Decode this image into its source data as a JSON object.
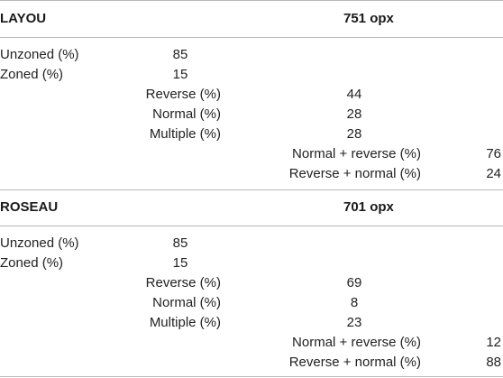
{
  "sections": [
    {
      "title": "LAYOU",
      "sample": "751 opx",
      "rows": {
        "unzoned_label": "Unzoned (%)",
        "unzoned_value": "85",
        "zoned_label": "Zoned (%)",
        "zoned_value": "15",
        "reverse_label": "Reverse (%)",
        "reverse_value": "44",
        "normal_label": "Normal (%)",
        "normal_value": "28",
        "multiple_label": "Multiple (%)",
        "multiple_value": "28",
        "normal_reverse_label": "Normal + reverse (%)",
        "normal_reverse_value": "76",
        "reverse_normal_label": "Reverse + normal (%)",
        "reverse_normal_value": "24"
      }
    },
    {
      "title": "ROSEAU",
      "sample": "701 opx",
      "rows": {
        "unzoned_label": "Unzoned (%)",
        "unzoned_value": "85",
        "zoned_label": "Zoned (%)",
        "zoned_value": "15",
        "reverse_label": "Reverse (%)",
        "reverse_value": "69",
        "normal_label": "Normal (%)",
        "normal_value": "8",
        "multiple_label": "Multiple (%)",
        "multiple_value": "23",
        "normal_reverse_label": "Normal + reverse (%)",
        "normal_reverse_value": "12",
        "reverse_normal_label": "Reverse + normal (%)",
        "reverse_normal_value": "88"
      }
    }
  ]
}
